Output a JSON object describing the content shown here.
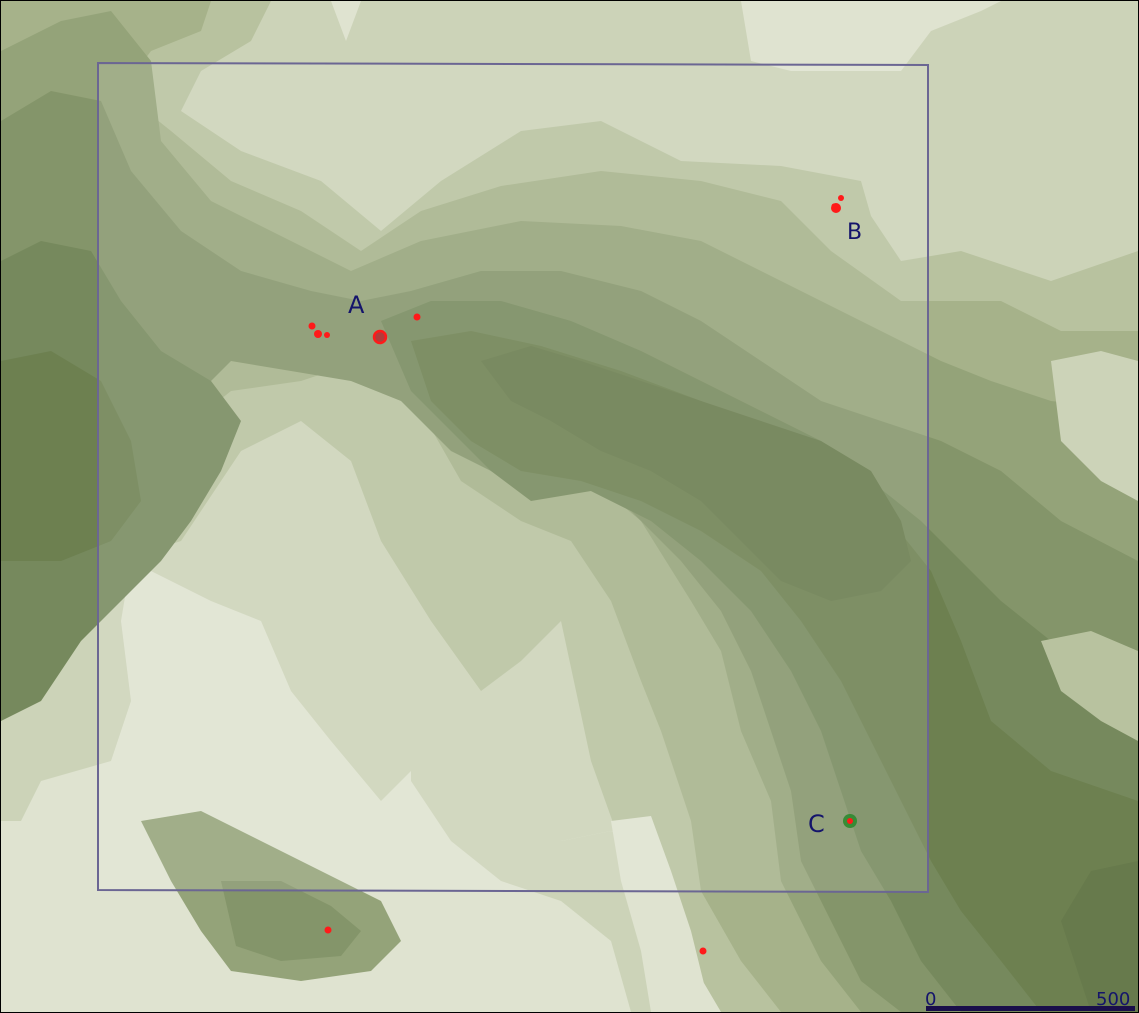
{
  "map": {
    "colors": {
      "background": "#dfe3d0",
      "contour_levels": [
        "#dfe3d0",
        "#ccd3b8",
        "#b8c29f",
        "#a6b28a",
        "#94a379",
        "#84956a",
        "#76895d",
        "#6d8050",
        "#677a4c"
      ],
      "frame_stroke": "#6b6693",
      "label": "#14146b",
      "feature_red": "#ff1a1a",
      "feature_green": "#2f8a2f",
      "scalebar": "#1a0f4a"
    },
    "site_labels": [
      {
        "id": "A",
        "text": "A"
      },
      {
        "id": "B",
        "text": "B"
      },
      {
        "id": "C",
        "text": "C"
      }
    ],
    "scale_bar": {
      "start_label": "0",
      "end_label": "500"
    },
    "features": {
      "red_point_count": 11,
      "green_marker_count": 1,
      "ring_marker_count": 1
    }
  }
}
